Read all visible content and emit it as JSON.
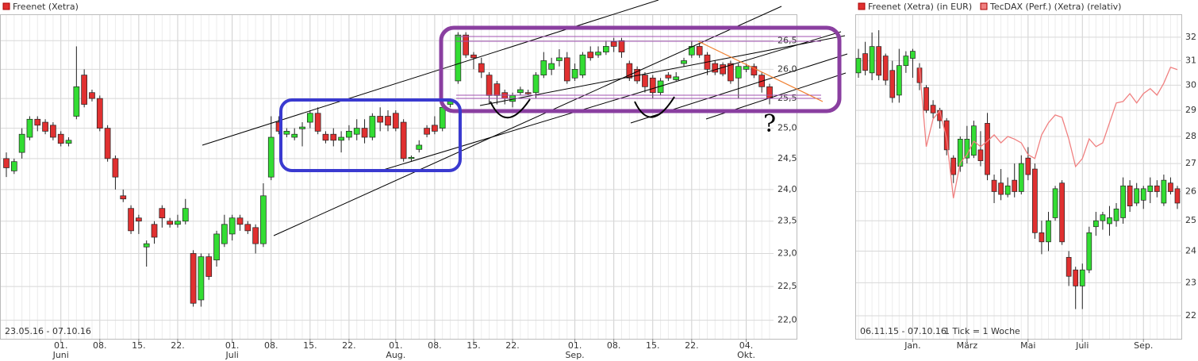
{
  "chart_data": [
    {
      "type": "candlestick",
      "log_scale": true,
      "grid": true,
      "date_range": "23.05.16 - 07.10.16",
      "annotations": [
        "?"
      ],
      "ylim": [
        21.73,
        26.97
      ],
      "yticks": [
        {
          "value": 22,
          "label": "22,0"
        },
        {
          "value": 22.5,
          "label": "22,5"
        },
        {
          "value": 23,
          "label": "23,0"
        },
        {
          "value": 23.5,
          "label": "23,5"
        },
        {
          "value": 24,
          "label": "24,0"
        },
        {
          "value": 24.5,
          "label": "24,5"
        },
        {
          "value": 25,
          "label": "25,0"
        },
        {
          "value": 25.5,
          "label": "25,5"
        },
        {
          "value": 26,
          "label": "26,0"
        },
        {
          "value": 26.5,
          "label": "26,5"
        }
      ],
      "categories": [
        null,
        null,
        null,
        null,
        null,
        null,
        null,
        "01.\nJuni",
        null,
        null,
        null,
        null,
        "08.",
        null,
        null,
        null,
        null,
        "15.",
        null,
        null,
        null,
        null,
        "22.",
        null,
        null,
        null,
        null,
        null,
        null,
        "01.\nJuli",
        null,
        null,
        null,
        null,
        "08.",
        null,
        null,
        null,
        null,
        "15.",
        null,
        null,
        null,
        null,
        "22.",
        null,
        null,
        null,
        null,
        null,
        "01.\nAug.",
        null,
        null,
        null,
        null,
        "08.",
        null,
        null,
        null,
        null,
        "15.",
        null,
        null,
        null,
        null,
        "22.",
        null,
        null,
        null,
        null,
        null,
        null,
        null,
        "01.\nSep.",
        null,
        null,
        null,
        null,
        "08.",
        null,
        null,
        null,
        null,
        "15.",
        null,
        null,
        null,
        null,
        "22.",
        null,
        null,
        null,
        null,
        null,
        null,
        "04.\nOkt.",
        null,
        null,
        null
      ],
      "series": [
        {
          "name": "Freenet (Xetra)",
          "color": "#e03030",
          "up_color": "#33dd33",
          "down_color": "#e03030",
          "open": [
            24.5,
            24.3,
            24.6,
            24.85,
            25.15,
            25.1,
            25.05,
            24.9,
            24.75,
            25.2,
            25.9,
            25.6,
            25.5,
            25.0,
            24.5,
            23.9,
            23.7,
            23.55,
            23.1,
            23.45,
            23.7,
            23.5,
            23.45,
            23.5,
            23.0,
            22.3,
            22.95,
            22.9,
            23.15,
            23.3,
            23.55,
            23.45,
            23.4,
            23.15,
            24.2,
            25.1,
            24.9,
            24.85,
            24.99,
            25.1,
            25.25,
            24.9,
            24.9,
            24.8,
            24.85,
            24.9,
            25.0,
            24.85,
            25.2,
            25.2,
            25.25,
            25.1,
            24.5,
            24.65,
            25.0,
            25.05,
            25.0,
            25.4,
            25.8,
            26.6,
            26.25,
            26.1,
            25.9,
            25.75,
            25.6,
            25.45,
            25.6,
            25.6,
            25.6,
            25.9,
            26.0,
            26.15,
            26.2,
            25.85,
            25.9,
            26.3,
            26.25,
            26.3,
            26.48,
            26.5,
            26.1,
            26.0,
            25.9,
            25.85,
            25.6,
            25.9,
            25.82,
            26.1,
            26.25,
            26.4,
            26.25,
            26.1,
            26.08,
            26.1,
            25.85,
            26.0,
            26.05,
            25.9,
            25.7
          ],
          "high": [
            24.6,
            24.5,
            25.0,
            25.2,
            25.2,
            25.15,
            25.1,
            24.95,
            24.85,
            26.4,
            26.0,
            25.65,
            25.55,
            25.05,
            24.55,
            24.0,
            23.75,
            23.6,
            23.2,
            23.5,
            23.75,
            23.55,
            23.6,
            23.85,
            23.05,
            23.0,
            23.0,
            23.35,
            23.6,
            23.6,
            23.6,
            23.5,
            23.45,
            24.1,
            25.2,
            25.2,
            25.0,
            25.0,
            25.1,
            25.3,
            25.35,
            24.95,
            25.0,
            24.95,
            25.05,
            25.15,
            25.15,
            25.25,
            25.35,
            25.3,
            25.3,
            25.15,
            24.55,
            24.8,
            25.05,
            25.2,
            25.4,
            25.5,
            26.65,
            26.65,
            26.3,
            26.2,
            25.95,
            25.8,
            25.65,
            25.6,
            25.7,
            25.65,
            25.95,
            26.3,
            26.2,
            26.35,
            26.3,
            26.1,
            26.3,
            26.4,
            26.4,
            26.5,
            26.55,
            26.55,
            26.15,
            26.05,
            25.95,
            25.9,
            25.85,
            25.95,
            25.95,
            26.2,
            26.5,
            26.45,
            26.3,
            26.15,
            26.12,
            26.15,
            26.1,
            26.1,
            26.1,
            25.95,
            25.75
          ],
          "low": [
            24.2,
            24.25,
            24.5,
            24.8,
            24.95,
            24.9,
            24.8,
            24.7,
            24.7,
            25.15,
            25.35,
            25.45,
            24.95,
            24.45,
            24.0,
            23.8,
            23.3,
            23.3,
            22.8,
            23.15,
            23.4,
            23.4,
            23.4,
            23.45,
            22.2,
            22.2,
            22.6,
            22.8,
            23.1,
            23.2,
            23.35,
            23.3,
            23.0,
            23.1,
            24.15,
            24.9,
            24.85,
            24.8,
            24.7,
            25.0,
            24.9,
            24.75,
            24.7,
            24.6,
            24.8,
            24.8,
            24.75,
            24.8,
            24.95,
            24.95,
            24.95,
            24.45,
            24.45,
            24.6,
            24.85,
            24.9,
            24.95,
            25.35,
            25.75,
            26.2,
            26.0,
            25.85,
            25.4,
            25.4,
            25.4,
            25.35,
            25.55,
            25.55,
            25.5,
            25.85,
            25.9,
            26.05,
            25.75,
            25.8,
            25.85,
            26.15,
            26.2,
            26.25,
            26.3,
            26.2,
            25.8,
            25.75,
            25.6,
            25.5,
            25.55,
            25.8,
            25.8,
            26.05,
            26.2,
            26.2,
            25.9,
            25.9,
            25.88,
            25.75,
            25.5,
            25.95,
            25.85,
            25.6,
            25.4
          ],
          "close": [
            24.35,
            24.45,
            24.9,
            25.15,
            25.05,
            24.95,
            24.85,
            24.75,
            24.8,
            25.7,
            25.4,
            25.5,
            25.0,
            24.5,
            24.2,
            23.85,
            23.35,
            23.5,
            23.15,
            23.25,
            23.55,
            23.45,
            23.5,
            23.7,
            22.25,
            22.95,
            22.65,
            23.3,
            23.45,
            23.55,
            23.45,
            23.35,
            23.15,
            23.9,
            24.85,
            24.95,
            24.95,
            24.9,
            25.02,
            25.25,
            24.95,
            24.8,
            24.8,
            24.85,
            24.95,
            25.0,
            24.85,
            25.2,
            25.1,
            25.05,
            25.0,
            24.5,
            24.52,
            24.72,
            24.9,
            24.95,
            25.35,
            25.45,
            26.6,
            26.25,
            26.2,
            25.95,
            25.55,
            25.55,
            25.5,
            25.55,
            25.65,
            25.58,
            25.9,
            26.15,
            26.1,
            26.2,
            25.8,
            26.0,
            26.25,
            26.2,
            26.3,
            26.4,
            26.4,
            26.3,
            25.85,
            25.8,
            25.7,
            25.6,
            25.8,
            25.85,
            25.87,
            26.15,
            26.4,
            26.25,
            26.0,
            25.95,
            25.92,
            25.8,
            26.05,
            26.05,
            25.9,
            25.7,
            25.5
          ]
        }
      ]
    },
    {
      "type": "candlestick",
      "log_scale": true,
      "grid": true,
      "date_range": "06.11.15 - 07.10.16",
      "tick_note": "1 Tick = 1 Woche",
      "ylim": [
        21.33,
        33.0
      ],
      "yticks": [
        22,
        23,
        24,
        25,
        26,
        27,
        28,
        29,
        30,
        31,
        32
      ],
      "categories": [
        null,
        null,
        null,
        null,
        null,
        null,
        null,
        null,
        "Jan.",
        null,
        null,
        null,
        null,
        null,
        null,
        null,
        "März",
        null,
        null,
        null,
        null,
        null,
        null,
        null,
        null,
        "Mai",
        null,
        null,
        null,
        null,
        null,
        null,
        null,
        "Juli",
        null,
        null,
        null,
        null,
        null,
        null,
        null,
        null,
        "Sep.",
        null,
        null,
        null,
        null,
        null
      ],
      "series": [
        {
          "name": "Freenet (Xetra) (in EUR)",
          "color": "#e03030",
          "up_color": "#33dd33",
          "down_color": "#e03030",
          "open": [
            30.5,
            31.3,
            30.5,
            31.6,
            31.2,
            30.6,
            29.6,
            30.8,
            31.1,
            30.7,
            29.9,
            29.2,
            29.0,
            28.6,
            27.2,
            26.9,
            27.2,
            27.3,
            27.5,
            28.5,
            26.4,
            26.3,
            25.9,
            26.4,
            26.0,
            27.2,
            26.8,
            24.6,
            24.3,
            25.1,
            26.3,
            23.8,
            23.4,
            22.9,
            23.4,
            24.8,
            25.0,
            24.9,
            25.0,
            25.1,
            26.2,
            25.6,
            25.7,
            26.0,
            26.2,
            25.6,
            26.3,
            26.1
          ],
          "high": [
            31.5,
            31.8,
            32.2,
            32.3,
            31.3,
            31.0,
            31.5,
            31.4,
            31.5,
            30.9,
            30.0,
            29.4,
            29.1,
            28.7,
            27.3,
            28.0,
            28.4,
            28.6,
            28.2,
            28.9,
            26.6,
            26.8,
            26.5,
            27.0,
            27.3,
            27.6,
            27.0,
            25.0,
            25.3,
            26.2,
            26.4,
            24.0,
            23.5,
            23.6,
            24.8,
            25.3,
            25.3,
            25.5,
            25.6,
            26.5,
            26.4,
            26.3,
            26.2,
            26.5,
            26.4,
            26.6,
            26.5,
            26.2
          ],
          "low": [
            30.3,
            30.4,
            30.2,
            30.2,
            30.0,
            29.3,
            29.3,
            30.5,
            30.3,
            29.8,
            28.9,
            28.7,
            28.3,
            27.3,
            26.3,
            26.7,
            27.0,
            27.2,
            26.9,
            26.4,
            25.6,
            25.7,
            25.8,
            25.8,
            25.9,
            26.4,
            24.4,
            23.9,
            24.0,
            25.0,
            24.2,
            22.9,
            22.2,
            22.2,
            23.3,
            24.5,
            24.7,
            24.5,
            24.8,
            24.9,
            25.3,
            25.5,
            25.4,
            25.6,
            25.8,
            25.5,
            25.9,
            25.4
          ],
          "close": [
            31.1,
            30.6,
            31.6,
            30.4,
            30.2,
            29.5,
            30.8,
            31.2,
            31.4,
            30.1,
            29.0,
            28.9,
            28.6,
            27.5,
            26.6,
            27.9,
            27.9,
            28.4,
            27.1,
            26.6,
            26.0,
            25.9,
            26.2,
            26.0,
            27.0,
            26.6,
            24.6,
            24.3,
            25.0,
            26.1,
            24.3,
            23.2,
            22.9,
            23.4,
            24.6,
            25.0,
            25.2,
            25.1,
            25.4,
            26.2,
            25.5,
            26.1,
            26.1,
            26.2,
            26.0,
            26.4,
            26.0,
            25.6
          ]
        },
        {
          "name": "TecDAX (Perf.) (Xetra) (relativ)",
          "type": "line",
          "color": "#f08080",
          "values": [
            null,
            null,
            null,
            null,
            null,
            null,
            null,
            null,
            null,
            30.73,
            27.62,
            28.67,
            28.98,
            27.91,
            25.77,
            27.03,
            27.32,
            27.82,
            27.62,
            27.82,
            28.06,
            27.76,
            28.0,
            27.9,
            27.76,
            27.32,
            27.18,
            28.06,
            28.52,
            28.82,
            28.73,
            27.91,
            26.89,
            27.18,
            27.91,
            27.62,
            27.76,
            28.52,
            29.29,
            29.35,
            29.66,
            29.29,
            29.66,
            29.86,
            29.6,
            30.08,
            30.73,
            30.63
          ]
        }
      ]
    }
  ]
}
